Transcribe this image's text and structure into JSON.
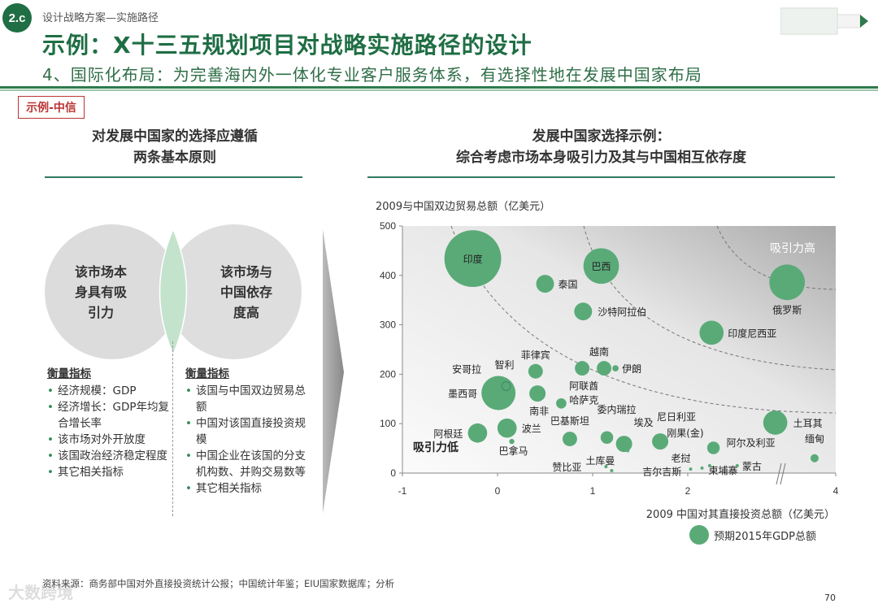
{
  "header": {
    "badge": "2.c",
    "breadcrumb": "设计战略方案—实施路径",
    "title": "示例：X十三五规划项目对战略实施路径的设计",
    "subtitle": "4、国际化布局：为完善海内外一体化专业客户服务体系，有选择性地在发展中国家布局",
    "tag": "示例-中信"
  },
  "left": {
    "heading_line1": "对发展中国家的选择应遵循",
    "heading_line2": "两条基本原则",
    "circle_left": [
      "该市场本",
      "身具有吸",
      "引力"
    ],
    "circle_right": [
      "该市场与",
      "中国依存",
      "度高"
    ],
    "list_left": {
      "title": "衡量指标",
      "items": [
        "经济规模：GDP",
        "经济增长：GDP年均复合增长率",
        "该市场对外开放度",
        "该国政治经济稳定程度",
        "其它相关指标"
      ]
    },
    "list_right": {
      "title": "衡量指标",
      "items": [
        "该国与中国双边贸易总额",
        "中国对该国直接投资规模",
        "中国企业在该国的分支机构数、并购交易数等",
        "其它相关指标"
      ]
    }
  },
  "right": {
    "heading_line1": "发展中国家选择示例：",
    "heading_line2": "综合考虑市场本身吸引力及其与中国相互依存度"
  },
  "chart_data": {
    "type": "scatter",
    "ylabel": "2009与中国双边贸易总额（亿美元）",
    "xlabel": "2009 中国对其直接投资总额（亿美元）",
    "legend": "预期2015年GDP总额",
    "yticks": [
      "0",
      "100",
      "200",
      "300",
      "400",
      "500"
    ],
    "xticks": [
      "-1",
      "0",
      "1",
      "2",
      "4"
    ],
    "ylim": [
      0,
      500
    ],
    "xlim": [
      -1,
      4
    ],
    "x_axis_break": [
      3,
      4
    ],
    "annotation_high": "吸引力高",
    "annotation_low": "吸引力低",
    "bubble_color": "#5aaa78",
    "points": [
      {
        "name": "印度",
        "x": -0.26,
        "y": 434,
        "size": 122
      },
      {
        "name": "巴西",
        "x": 1.09,
        "y": 419,
        "size": 48
      },
      {
        "name": "泰国",
        "x": 0.5,
        "y": 383,
        "size": 12
      },
      {
        "name": "沙特阿拉伯",
        "x": 0.9,
        "y": 327,
        "size": 12
      },
      {
        "name": "俄罗斯",
        "x": 3.08,
        "y": 386,
        "size": 48
      },
      {
        "name": "印度尼西亚",
        "x": 2.25,
        "y": 284,
        "size": 22
      },
      {
        "name": "菲律宾",
        "x": 0.4,
        "y": 206,
        "size": 8
      },
      {
        "name": "阿联酋",
        "x": 0.89,
        "y": 212,
        "size": 8
      },
      {
        "name": "越南",
        "x": 1.12,
        "y": 212,
        "size": 8
      },
      {
        "name": "伊朗",
        "x": 1.24,
        "y": 212,
        "size": 1.5
      },
      {
        "name": "墨西哥",
        "x": 0.01,
        "y": 162,
        "size": 44
      },
      {
        "name": "智利",
        "x": 0.09,
        "y": 176,
        "size": 3
      },
      {
        "name": "安哥拉",
        "x": 0.07,
        "y": 170,
        "size": 0
      },
      {
        "name": "南非",
        "x": 0.42,
        "y": 161,
        "size": 10
      },
      {
        "name": "哈萨克",
        "x": 0.67,
        "y": 141,
        "size": 4
      },
      {
        "name": "阿根廷",
        "x": -0.21,
        "y": 81,
        "size": 14
      },
      {
        "name": "波兰",
        "x": 0.1,
        "y": 91,
        "size": 14
      },
      {
        "name": "巴拿马",
        "x": 0.15,
        "y": 64,
        "size": 1
      },
      {
        "name": "巴基斯坦",
        "x": 0.76,
        "y": 69,
        "size": 8
      },
      {
        "name": "委内瑞拉",
        "x": 1.15,
        "y": 72,
        "size": 6
      },
      {
        "name": "埃及",
        "x": 1.33,
        "y": 59,
        "size": 10
      },
      {
        "name": "吉尔吉斯",
        "x": 1.37,
        "y": 45,
        "size": 0.3
      },
      {
        "name": "尼日利亚",
        "x": 1.71,
        "y": 64,
        "size": 10
      },
      {
        "name": "阿尔及利亚",
        "x": 2.27,
        "y": 51,
        "size": 6
      },
      {
        "name": "土耳其",
        "x": 2.92,
        "y": 102,
        "size": 22
      },
      {
        "name": "缅甸",
        "x": 3.6,
        "y": 30,
        "size": 2.5
      },
      {
        "name": "老挝",
        "x": 2.03,
        "y": 8,
        "size": 0.4
      },
      {
        "name": "柬埔寨",
        "x": 2.15,
        "y": 10,
        "size": 0.4
      },
      {
        "name": "刚果(金)",
        "x": 2.23,
        "y": 15,
        "size": 0.4
      },
      {
        "name": "赞比亚",
        "x": 1.14,
        "y": 13,
        "size": 0.4
      },
      {
        "name": "土库曼",
        "x": 1.2,
        "y": 5,
        "size": 0.4
      },
      {
        "name": "蒙古",
        "x": 2.52,
        "y": 15,
        "size": 0.4
      }
    ]
  },
  "footer": {
    "source": "资料来源：商务部中国对外直接投资统计公报；中国统计年鉴；EIU国家数据库；分析",
    "page": "70",
    "watermark": "大数跨境"
  }
}
